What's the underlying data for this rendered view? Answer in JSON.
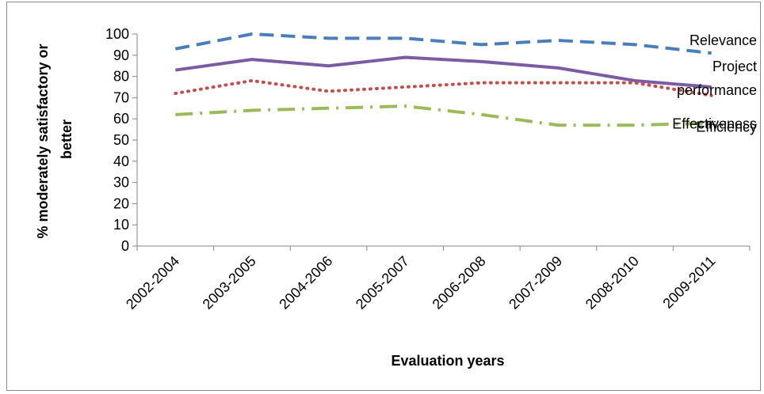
{
  "chart_data": {
    "type": "line",
    "title": "",
    "xlabel": "Evaluation years",
    "ylabel": [
      "% moderately satisfactory or",
      "better"
    ],
    "ylim": [
      0,
      100
    ],
    "yticks": [
      0,
      10,
      20,
      30,
      40,
      50,
      60,
      70,
      80,
      90,
      100
    ],
    "categories": [
      "2002-2004",
      "2003-2005",
      "2004-2006",
      "2005-2007",
      "2006-2008",
      "2007-2009",
      "2008-2010",
      "2009-2011"
    ],
    "grid": false,
    "series": [
      {
        "name": "Relevance",
        "label_lines": [
          "Relevance"
        ],
        "values": [
          93,
          100,
          98,
          98,
          95,
          97,
          95,
          91
        ],
        "color": "#4a7ebb",
        "dash": "dashed"
      },
      {
        "name": "Project performance",
        "label_lines": [
          "Project",
          "performance"
        ],
        "values": [
          83,
          88,
          85,
          89,
          87,
          84,
          78,
          75
        ],
        "color": "#7c5ba5",
        "dash": "solid"
      },
      {
        "name": "Effectiveness",
        "label_lines": [
          "Effectiveness"
        ],
        "values": [
          72,
          78,
          73,
          75,
          77,
          77,
          77,
          71
        ],
        "color": "#c0504d",
        "dash": "dotted"
      },
      {
        "name": "Efficiency",
        "label_lines": [
          "Efficiency"
        ],
        "values": [
          62,
          64,
          65,
          66,
          62,
          57,
          57,
          58
        ],
        "color": "#9bbb59",
        "dash": "dashdot"
      }
    ]
  }
}
